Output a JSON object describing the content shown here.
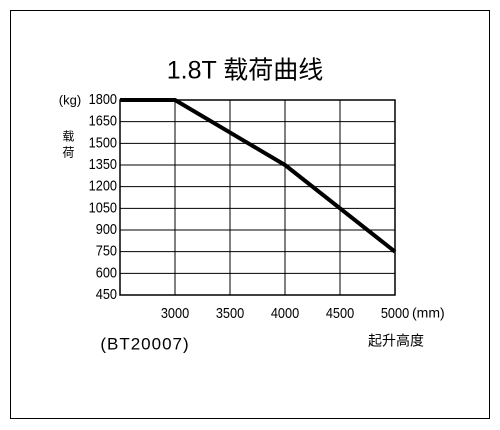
{
  "chart_data": {
    "type": "line",
    "title": "1.8T 载荷曲线",
    "subtitle": "(BT20007)",
    "ylabel": "载荷",
    "y_unit": "(kg)",
    "xlabel": "起升高度",
    "x_unit": "(mm)",
    "x": [
      2500,
      3000,
      4000,
      5000
    ],
    "series": [
      {
        "color": "#000000",
        "values": [
          1800,
          1800,
          1350,
          750
        ]
      }
    ],
    "xlim": [
      2500,
      5000
    ],
    "xticks": [
      3000,
      3500,
      4000,
      4500,
      5000
    ],
    "ylim": [
      450,
      1800
    ],
    "yticks": [
      450,
      600,
      750,
      900,
      1050,
      1200,
      1350,
      1500,
      1650,
      1800
    ],
    "grid": true
  }
}
